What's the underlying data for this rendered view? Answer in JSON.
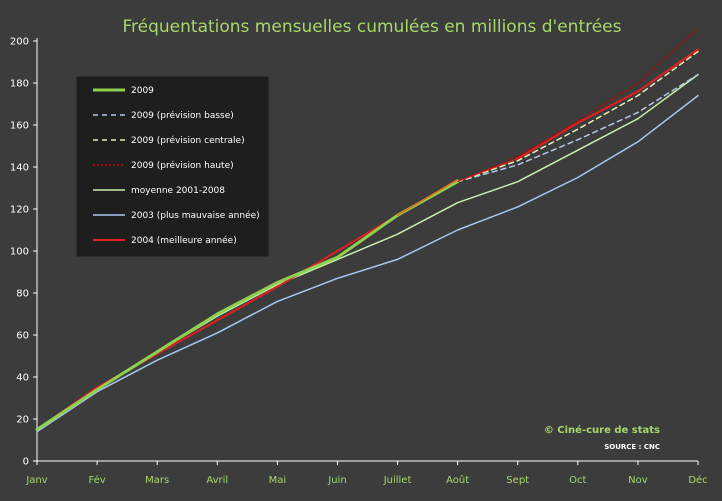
{
  "chart_data": {
    "type": "line",
    "title": "Fréquentations mensuelles cumulées en millions d'entrées",
    "categories": [
      "Janv",
      "Fév",
      "Mars",
      "Avril",
      "Mai",
      "Juin",
      "Juillet",
      "Août",
      "Sept",
      "Oct",
      "Nov",
      "Déc"
    ],
    "ylim": [
      0,
      200
    ],
    "yticks": [
      0,
      20,
      40,
      60,
      80,
      100,
      120,
      140,
      160,
      180,
      200
    ],
    "grid": false,
    "legend_position": "top-left",
    "series": [
      {
        "name": "2009",
        "color": "#8fd14f",
        "width": 3,
        "dash": "",
        "values": [
          15,
          34,
          52,
          70,
          85,
          97,
          117,
          133,
          null,
          null,
          null,
          null
        ]
      },
      {
        "name": "2009 (prévision basse)",
        "color": "#b4c7e7",
        "width": 1.5,
        "dash": "5,4",
        "values": [
          null,
          null,
          null,
          null,
          null,
          null,
          null,
          133,
          141,
          153,
          166,
          184
        ]
      },
      {
        "name": "2009 (prévision centrale)",
        "color": "#e6f0b4",
        "width": 1.5,
        "dash": "5,4",
        "values": [
          null,
          null,
          null,
          null,
          null,
          null,
          null,
          133,
          143,
          158,
          174,
          195
        ]
      },
      {
        "name": "2009 (prévision haute)",
        "color": "#c00000",
        "width": 1,
        "dash": "2,2",
        "values": [
          null,
          null,
          null,
          null,
          null,
          null,
          null,
          133,
          145,
          162,
          180,
          206
        ]
      },
      {
        "name": "moyenne 2001-2008",
        "color": "#c6efae",
        "width": 1.5,
        "dash": "",
        "values": [
          15,
          34,
          52,
          69,
          84,
          96,
          108,
          123,
          133,
          148,
          163,
          184
        ]
      },
      {
        "name": "2003 (plus mauvaise année)",
        "color": "#a6c8f0",
        "width": 1.5,
        "dash": "",
        "values": [
          14,
          33,
          48,
          61,
          76,
          87,
          96,
          110,
          121,
          135,
          152,
          174
        ]
      },
      {
        "name": "2004 (meilleure année)",
        "color": "#e02020",
        "width": 2,
        "dash": "",
        "values": [
          15,
          35,
          51,
          67,
          83,
          100,
          117,
          null,
          144,
          161,
          176,
          196
        ]
      }
    ],
    "extra_lines": [
      {
        "color": "#e07020",
        "width": 1.5,
        "values": [
          null,
          null,
          null,
          null,
          null,
          null,
          117,
          134,
          null,
          null,
          null,
          null
        ]
      },
      {
        "color": "#e02020",
        "width": 1,
        "values": [
          null,
          null,
          null,
          null,
          null,
          null,
          null,
          133,
          144,
          null,
          null,
          null
        ]
      }
    ]
  },
  "credit": "© Ciné-cure de stats",
  "source": "SOURCE : CNC"
}
